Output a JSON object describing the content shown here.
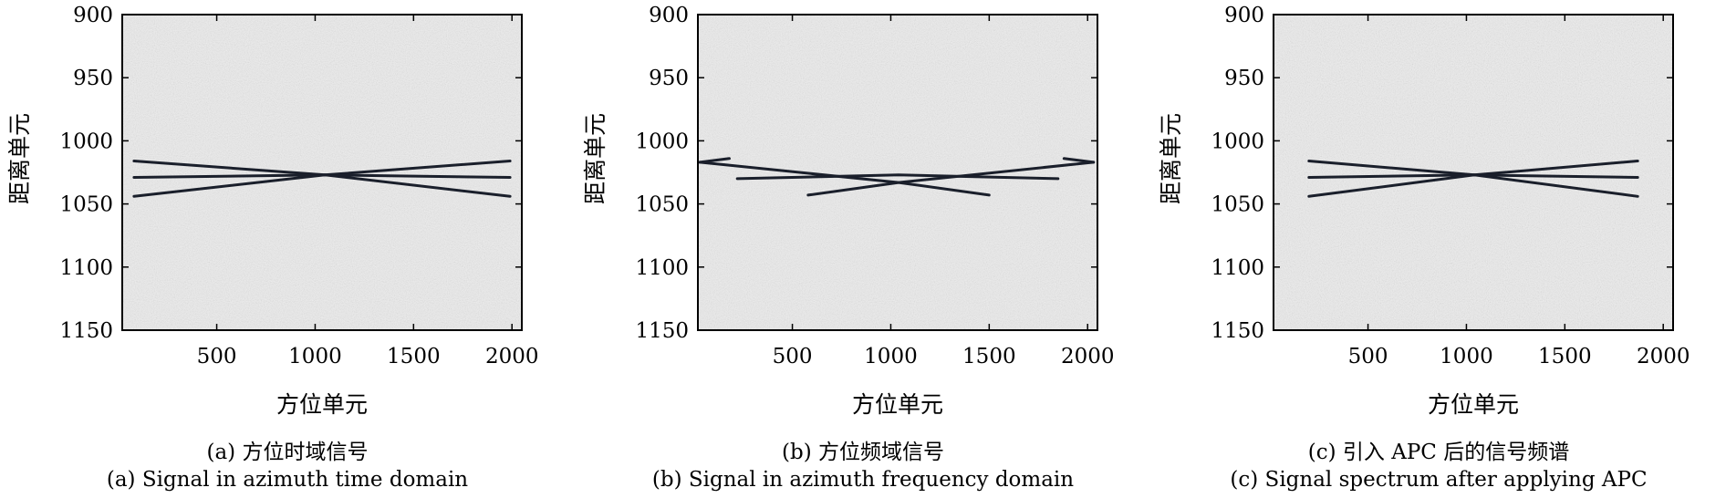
{
  "chart_data": [
    {
      "type": "heatmap",
      "caption_cn": "(a) 方位时域信号",
      "caption_en": "(a) Signal in azimuth time domain",
      "xlabel": "方位单元",
      "ylabel": "距离单元",
      "xlim": [
        20,
        2050
      ],
      "ylim": [
        1150,
        900
      ],
      "xticks": [
        500,
        1000,
        1500,
        2000
      ],
      "yticks": [
        900,
        950,
        1000,
        1050,
        1100,
        1150
      ],
      "background": "#ededed",
      "line_color": "#1a1f2b",
      "lines": [
        {
          "x": [
            80,
            1050,
            1990
          ],
          "y": [
            1016,
            1027,
            1044
          ]
        },
        {
          "x": [
            80,
            1050,
            1990
          ],
          "y": [
            1029,
            1027,
            1029
          ]
        },
        {
          "x": [
            80,
            1050,
            1990
          ],
          "y": [
            1044,
            1027,
            1016
          ]
        }
      ]
    },
    {
      "type": "heatmap",
      "caption_cn": "(b) 方位频域信号",
      "caption_en": "(b) Signal in azimuth frequency domain",
      "xlabel": "方位单元",
      "ylabel": "距离单元",
      "xlim": [
        20,
        2050
      ],
      "ylim": [
        1150,
        900
      ],
      "xticks": [
        500,
        1000,
        1500,
        2000
      ],
      "yticks": [
        900,
        950,
        1000,
        1050,
        1100,
        1150
      ],
      "background": "#ededed",
      "line_color": "#1a1f2b",
      "lines": [
        {
          "x": [
            30,
            1040,
            1500
          ],
          "y": [
            1017,
            1033,
            1043
          ]
        },
        {
          "x": [
            580,
            1040,
            2030
          ],
          "y": [
            1043,
            1033,
            1017
          ]
        },
        {
          "x": [
            220,
            1040,
            1850
          ],
          "y": [
            1030,
            1027,
            1030
          ]
        },
        {
          "x": [
            30,
            180
          ],
          "y": [
            1017,
            1014
          ]
        },
        {
          "x": [
            1880,
            2030
          ],
          "y": [
            1014,
            1017
          ]
        }
      ]
    },
    {
      "type": "heatmap",
      "caption_cn": "(c) 引入 APC 后的信号频谱",
      "caption_en": "(c) Signal spectrum after applying APC",
      "xlabel": "方位单元",
      "ylabel": "距离单元",
      "xlim": [
        20,
        2050
      ],
      "ylim": [
        1150,
        900
      ],
      "xticks": [
        500,
        1000,
        1500,
        2000
      ],
      "yticks": [
        900,
        950,
        1000,
        1050,
        1100,
        1150
      ],
      "background": "#ededed",
      "line_color": "#1a1f2b",
      "lines": [
        {
          "x": [
            200,
            1040,
            1870
          ],
          "y": [
            1016,
            1027,
            1044
          ]
        },
        {
          "x": [
            200,
            1040,
            1870
          ],
          "y": [
            1029,
            1027,
            1029
          ]
        },
        {
          "x": [
            200,
            1040,
            1870
          ],
          "y": [
            1044,
            1027,
            1016
          ]
        }
      ]
    }
  ]
}
